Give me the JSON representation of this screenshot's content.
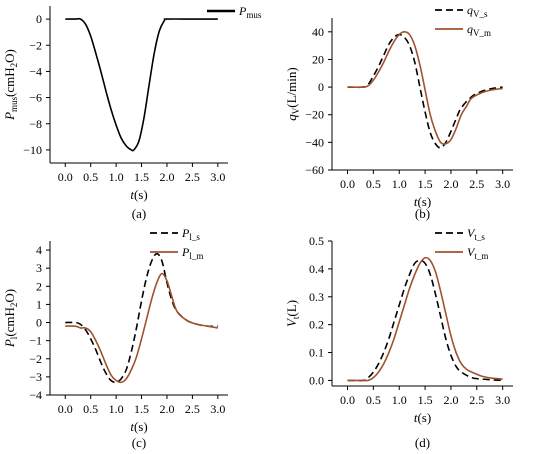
{
  "colors": {
    "axis": "#000000",
    "black": "#000000",
    "brown": "#A0522D"
  },
  "chart_data": [
    {
      "type": "line",
      "panel_label": "(a)",
      "ylabel": "Pmus(cmH2O)",
      "ylabel_parts": {
        "main": "P",
        "sub": "mus",
        "rest": "(cmH",
        "sub2": "2",
        "tail": "O)"
      },
      "xlabel": "t(s)",
      "xlim": [
        -0.3,
        3.2
      ],
      "ylim": [
        -11,
        1
      ],
      "xticks": [
        0.0,
        0.5,
        1.0,
        1.5,
        2.0,
        2.5,
        3.0
      ],
      "xtick_labels": [
        "0.0",
        "0.5",
        "1.0",
        "1.5",
        "2.0",
        "2.5",
        "3.0"
      ],
      "yticks": [
        0,
        -2,
        -4,
        -6,
        -8,
        -10
      ],
      "ytick_labels": [
        "0",
        "−2",
        "−4",
        "−6",
        "−8",
        "−10"
      ],
      "legend_position": "top-right",
      "series": [
        {
          "name": "Pmus",
          "label_main": "P",
          "label_sub": "mus",
          "color": "#000000",
          "dash": "solid",
          "x": [
            0.0,
            0.2,
            0.3,
            0.4,
            0.5,
            0.6,
            0.7,
            0.8,
            0.9,
            1.0,
            1.1,
            1.2,
            1.3,
            1.35,
            1.45,
            1.55,
            1.65,
            1.75,
            1.85,
            1.95,
            2.0,
            2.5,
            3.0
          ],
          "y": [
            0,
            0,
            0,
            -0.4,
            -1.3,
            -2.6,
            -4.0,
            -5.5,
            -6.9,
            -8.1,
            -9.1,
            -9.7,
            -10.0,
            -10.0,
            -9.3,
            -7.5,
            -5.0,
            -2.6,
            -0.9,
            -0.1,
            0,
            0,
            0
          ]
        }
      ]
    },
    {
      "type": "line",
      "panel_label": "(b)",
      "ylabel": "qV(L/min)",
      "ylabel_parts": {
        "main": "q",
        "sub": "V",
        "rest": "(L/min)",
        "sub2": "",
        "tail": ""
      },
      "xlabel": "t(s)",
      "xlim": [
        -0.3,
        3.2
      ],
      "ylim": [
        -60,
        50
      ],
      "xticks": [
        0.0,
        0.5,
        1.0,
        1.5,
        2.0,
        2.5,
        3.0
      ],
      "xtick_labels": [
        "0.0",
        "0.5",
        "1.0",
        "1.5",
        "2.0",
        "2.5",
        "3.0"
      ],
      "yticks": [
        40,
        20,
        0,
        -20,
        -40,
        -60
      ],
      "ytick_labels": [
        "40",
        "20",
        "0",
        "−20",
        "−40",
        "−60"
      ],
      "legend_position": "top-right",
      "series": [
        {
          "name": "qV_s",
          "label_main": "q",
          "label_sub": "V_s",
          "color": "#000000",
          "dash": "dashed",
          "x": [
            0.0,
            0.3,
            0.4,
            0.5,
            0.6,
            0.7,
            0.8,
            0.9,
            1.0,
            1.1,
            1.2,
            1.3,
            1.4,
            1.5,
            1.6,
            1.7,
            1.8,
            1.9,
            2.0,
            2.1,
            2.2,
            2.4,
            2.6,
            2.8,
            3.0
          ],
          "y": [
            0,
            0,
            2,
            8,
            15,
            23,
            31,
            36,
            38,
            36,
            30,
            18,
            0,
            -18,
            -33,
            -41,
            -44,
            -40,
            -32,
            -23,
            -15,
            -7,
            -3,
            -1,
            0
          ]
        },
        {
          "name": "qV_m",
          "label_main": "q",
          "label_sub": "V_m",
          "color": "#A0522D",
          "dash": "solid",
          "x": [
            0.0,
            0.3,
            0.4,
            0.5,
            0.6,
            0.7,
            0.8,
            0.9,
            1.0,
            1.1,
            1.2,
            1.3,
            1.4,
            1.5,
            1.6,
            1.7,
            1.8,
            1.9,
            2.0,
            2.1,
            2.2,
            2.3,
            2.4,
            2.6,
            2.8,
            3.0
          ],
          "y": [
            0,
            0,
            1,
            5,
            11,
            18,
            26,
            33,
            38,
            40,
            38,
            30,
            16,
            -2,
            -20,
            -32,
            -40,
            -41,
            -38,
            -30,
            -20,
            -14,
            -8,
            -4,
            -2,
            -1
          ]
        }
      ]
    },
    {
      "type": "line",
      "panel_label": "(c)",
      "ylabel": "Pl(cmH2O)",
      "ylabel_parts": {
        "main": "P",
        "sub": "l",
        "rest": "(cmH",
        "sub2": "2",
        "tail": "O)"
      },
      "xlabel": "t(s)",
      "xlim": [
        -0.3,
        3.2
      ],
      "ylim": [
        -4,
        4.5
      ],
      "xticks": [
        0.0,
        0.5,
        1.0,
        1.5,
        2.0,
        2.5,
        3.0
      ],
      "xtick_labels": [
        "0.0",
        "0.5",
        "1.0",
        "1.5",
        "2.0",
        "2.5",
        "3.0"
      ],
      "yticks": [
        4,
        3,
        2,
        1,
        0,
        -1,
        -2,
        -3,
        -4
      ],
      "ytick_labels": [
        "4",
        "3",
        "2",
        "1",
        "0",
        "−1",
        "−2",
        "−3",
        "−4"
      ],
      "legend_position": "top-right",
      "series": [
        {
          "name": "Pl_s",
          "label_main": "P",
          "label_sub": "l_s",
          "color": "#000000",
          "dash": "dashed",
          "x": [
            0.0,
            0.2,
            0.3,
            0.4,
            0.5,
            0.6,
            0.7,
            0.8,
            0.9,
            1.0,
            1.1,
            1.2,
            1.3,
            1.4,
            1.5,
            1.6,
            1.7,
            1.8,
            1.9,
            2.0,
            2.1,
            2.2,
            2.4,
            2.6,
            2.8,
            3.0
          ],
          "y": [
            0,
            0,
            -0.1,
            -0.4,
            -0.9,
            -1.5,
            -2.2,
            -2.8,
            -3.2,
            -3.3,
            -3.1,
            -2.6,
            -1.6,
            -0.3,
            1.2,
            2.5,
            3.4,
            3.8,
            3.4,
            2.2,
            1.2,
            0.6,
            0.1,
            -0.1,
            -0.2,
            -0.2
          ]
        },
        {
          "name": "Pl_m",
          "label_main": "P",
          "label_sub": "l_m",
          "color": "#A0522D",
          "dash": "solid",
          "x": [
            0.0,
            0.2,
            0.3,
            0.4,
            0.5,
            0.6,
            0.7,
            0.8,
            0.9,
            1.0,
            1.1,
            1.2,
            1.3,
            1.4,
            1.5,
            1.6,
            1.7,
            1.8,
            1.9,
            2.0,
            2.1,
            2.2,
            2.4,
            2.6,
            2.8,
            3.0
          ],
          "y": [
            -0.2,
            -0.2,
            -0.3,
            -0.3,
            -0.5,
            -1.0,
            -1.6,
            -2.3,
            -2.9,
            -3.2,
            -3.3,
            -3.1,
            -2.6,
            -1.9,
            -0.9,
            0.2,
            1.3,
            2.2,
            2.7,
            2.3,
            1.4,
            0.6,
            0.1,
            -0.1,
            -0.2,
            -0.3
          ]
        }
      ]
    },
    {
      "type": "line",
      "panel_label": "(d)",
      "ylabel": "Vt(L)",
      "ylabel_parts": {
        "main": "V",
        "sub": "t",
        "rest": "(L)",
        "sub2": "",
        "tail": ""
      },
      "xlabel": "t(s)",
      "xlim": [
        -0.3,
        3.2
      ],
      "ylim": [
        -0.02,
        0.5
      ],
      "xticks": [
        0.0,
        0.5,
        1.0,
        1.5,
        2.0,
        2.5,
        3.0
      ],
      "xtick_labels": [
        "0.0",
        "0.5",
        "1.0",
        "1.5",
        "2.0",
        "2.5",
        "3.0"
      ],
      "yticks": [
        0.5,
        0.4,
        0.3,
        0.2,
        0.1,
        0.0
      ],
      "ytick_labels": [
        "0.5",
        "0.4",
        "0.3",
        "0.2",
        "0.1",
        "0.0"
      ],
      "legend_position": "top-right",
      "series": [
        {
          "name": "Vt_s",
          "label_main": "V",
          "label_sub": "t_s",
          "color": "#000000",
          "dash": "dashed",
          "x": [
            0.0,
            0.3,
            0.4,
            0.5,
            0.6,
            0.7,
            0.8,
            0.9,
            1.0,
            1.1,
            1.2,
            1.3,
            1.4,
            1.5,
            1.6,
            1.7,
            1.8,
            1.9,
            2.0,
            2.1,
            2.2,
            2.4,
            2.6,
            2.8,
            3.0
          ],
          "y": [
            0,
            0,
            0.01,
            0.03,
            0.06,
            0.1,
            0.15,
            0.21,
            0.27,
            0.33,
            0.38,
            0.42,
            0.43,
            0.42,
            0.38,
            0.31,
            0.23,
            0.15,
            0.09,
            0.05,
            0.03,
            0.01,
            0.005,
            0.002,
            0
          ]
        },
        {
          "name": "Vt_m",
          "label_main": "V",
          "label_sub": "t_m",
          "color": "#A0522D",
          "dash": "solid",
          "x": [
            0.0,
            0.3,
            0.4,
            0.5,
            0.6,
            0.7,
            0.8,
            0.9,
            1.0,
            1.1,
            1.2,
            1.3,
            1.4,
            1.5,
            1.6,
            1.7,
            1.8,
            1.9,
            2.0,
            2.1,
            2.2,
            2.3,
            2.4,
            2.6,
            2.8,
            3.0
          ],
          "y": [
            0,
            0,
            0,
            0.01,
            0.03,
            0.06,
            0.1,
            0.15,
            0.21,
            0.27,
            0.33,
            0.38,
            0.42,
            0.44,
            0.43,
            0.39,
            0.32,
            0.24,
            0.16,
            0.1,
            0.06,
            0.04,
            0.03,
            0.015,
            0.008,
            0.005
          ]
        }
      ]
    }
  ]
}
